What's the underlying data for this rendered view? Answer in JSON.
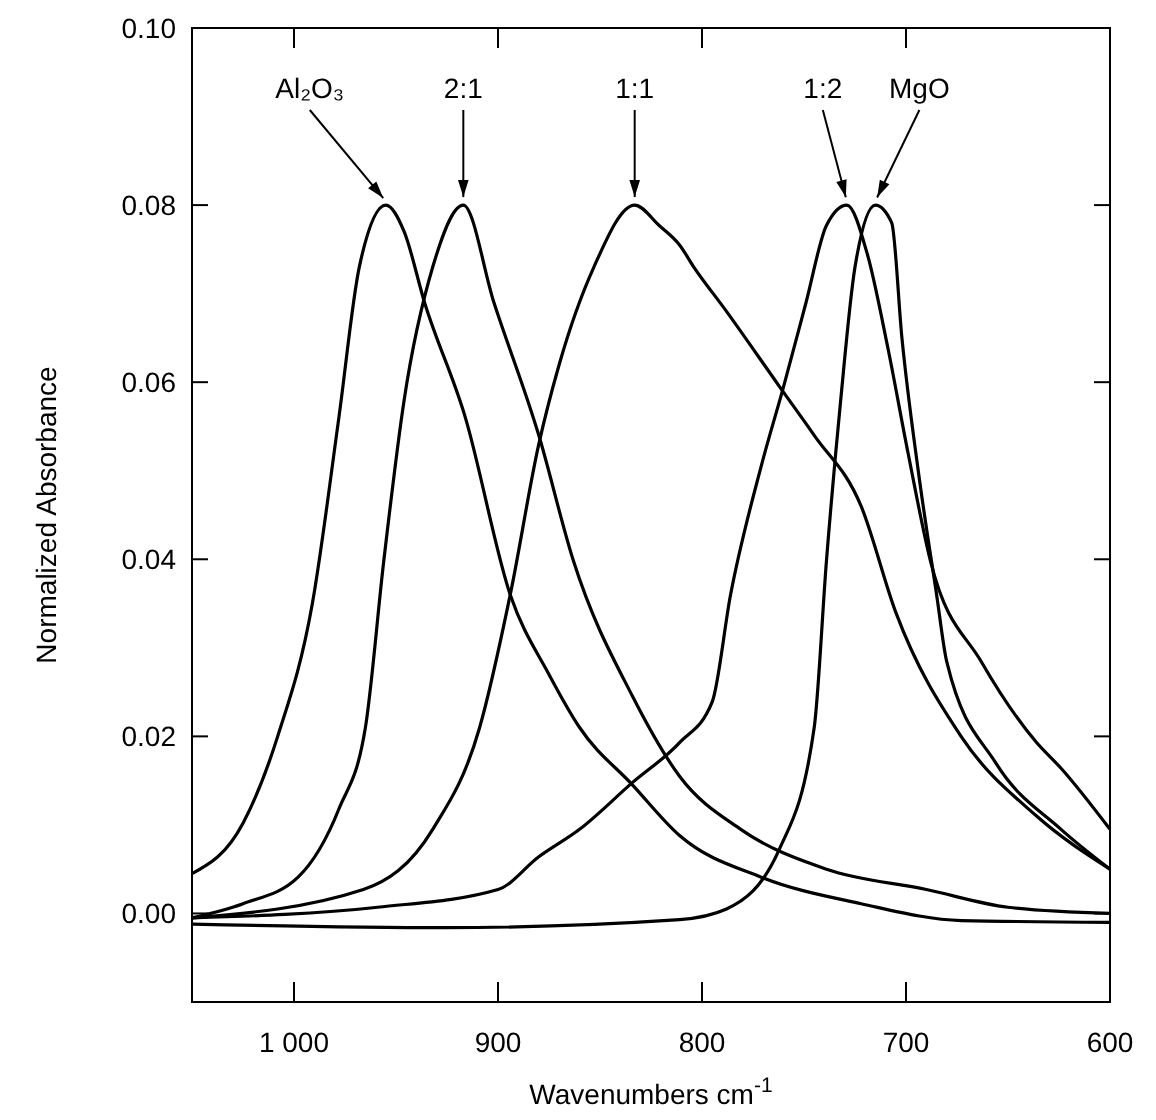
{
  "chart_data": {
    "type": "line",
    "xlabel": "Wavenumbers cm$^{-1}$",
    "ylabel": "Normalized Absorbance",
    "xlim": [
      1050,
      600
    ],
    "ylim": [
      -0.01,
      0.1
    ],
    "xticks": [
      {
        "value": 1000,
        "label": "1 000"
      },
      900,
      800,
      700,
      600
    ],
    "yticks": [
      {
        "value": 0,
        "label": "0.00"
      },
      0.02,
      0.04,
      0.06,
      0.08,
      {
        "value": 0.1,
        "label": "0.10"
      }
    ],
    "grid": false,
    "annotations": [
      {
        "text": "Al₂O₃",
        "x": 955,
        "y": 0.08
      },
      {
        "text": "2:1",
        "x": 917,
        "y": 0.08
      },
      {
        "text": "1:1",
        "x": 833,
        "y": 0.08
      },
      {
        "text": "1:2",
        "x": 729,
        "y": 0.08
      },
      {
        "text": "MgO",
        "x": 715,
        "y": 0.08
      }
    ],
    "marker": "none",
    "line_style": "solid",
    "series": [
      {
        "color": "#000000",
        "x": [
          1050,
          1025,
          1008,
          991,
          978,
          968,
          955,
          946,
          936,
          916,
          894,
          875,
          860,
          834,
          811,
          771,
          722,
          673,
          600
        ],
        "values": [
          0.0045,
          0.0102,
          0.02,
          0.035,
          0.056,
          0.073,
          0.08,
          0.077,
          0.069,
          0.056,
          0.036,
          0.027,
          0.021,
          0.0145,
          0.0088,
          0.0041,
          0.0011,
          -0.0008,
          -0.001
        ]
      },
      {
        "color": "#000000",
        "x": [
          1050,
          1025,
          998,
          978,
          965,
          956,
          946,
          932,
          917,
          902,
          880,
          863,
          834,
          811,
          781,
          739,
          690,
          650,
          600
        ],
        "values": [
          -0.0005,
          0.0011,
          0.0041,
          0.0118,
          0.021,
          0.0398,
          0.058,
          0.073,
          0.08,
          0.069,
          0.054,
          0.0398,
          0.0245,
          0.0155,
          0.0095,
          0.005,
          0.0027,
          0.0007,
          0
        ]
      },
      {
        "color": "#000000",
        "x": [
          1050,
          966,
          932,
          909,
          894,
          880,
          870,
          853,
          833,
          821,
          811,
          804,
          788,
          762,
          745,
          722,
          705,
          673,
          636,
          600
        ],
        "values": [
          -0.0005,
          0.0027,
          0.0095,
          0.021,
          0.036,
          0.053,
          0.062,
          0.073,
          0.08,
          0.0777,
          0.0755,
          0.073,
          0.068,
          0.0595,
          0.054,
          0.046,
          0.034,
          0.02,
          0.011,
          0.005
        ]
      },
      {
        "color": "#000000",
        "x": [
          1050,
          959,
          900,
          880,
          860,
          834,
          811,
          795,
          786,
          771,
          760,
          749,
          739,
          729,
          719,
          709,
          699,
          688,
          663,
          636,
          624,
          600
        ],
        "values": [
          -0.0005,
          0.0007,
          0.0027,
          0.0064,
          0.0095,
          0.0148,
          0.0193,
          0.0239,
          0.036,
          0.0505,
          0.0595,
          0.069,
          0.0777,
          0.08,
          0.0745,
          0.064,
          0.052,
          0.0398,
          0.0284,
          0.0193,
          0.0164,
          0.0095
        ]
      },
      {
        "color": "#000000",
        "x": [
          1050,
          926,
          811,
          788,
          762,
          745,
          739,
          732,
          725,
          715,
          707,
          702,
          694,
          685,
          680,
          656,
          624,
          600
        ],
        "values": [
          -0.0012,
          -0.0016,
          -0.0007,
          0.0005,
          0.0073,
          0.021,
          0.0398,
          0.058,
          0.073,
          0.08,
          0.078,
          0.065,
          0.05,
          0.036,
          0.0284,
          0.017,
          0.0095,
          0.005
        ]
      }
    ]
  }
}
